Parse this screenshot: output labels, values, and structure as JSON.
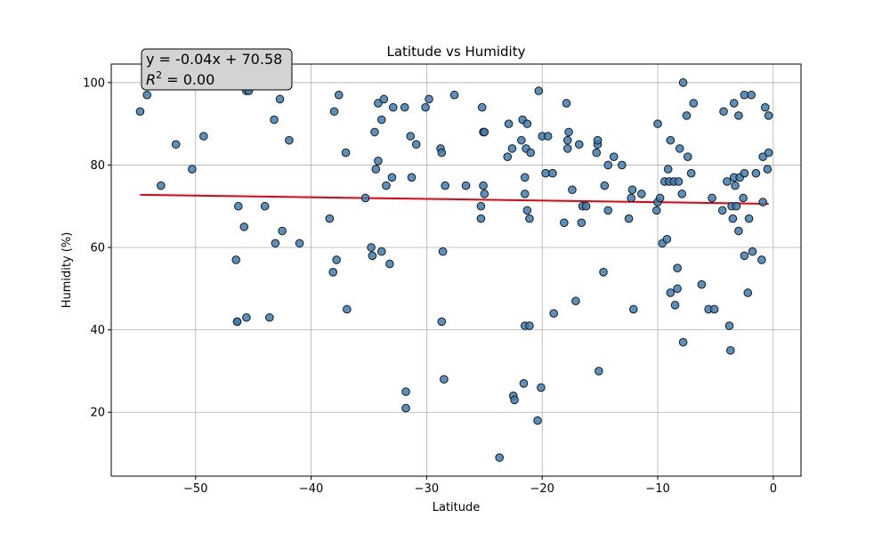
{
  "chart_data": {
    "type": "scatter",
    "title": "Latitude vs Humidity",
    "xlabel": "Latitude",
    "ylabel": "Humidity (%)",
    "xlim": [
      -57.3,
      2.4
    ],
    "ylim": [
      4.5,
      104.5
    ],
    "xticks": [
      -50,
      -40,
      -30,
      -20,
      -10,
      0
    ],
    "yticks": [
      20,
      40,
      60,
      80,
      100
    ],
    "grid": true,
    "point_color": "#3b7cb4",
    "point_edge_color": "#1a1a1a",
    "line_color": "#e8000b",
    "annotation": {
      "equation": "y = -0.04x + 70.58",
      "r2_label": "R",
      "r2_sup": "2",
      "r2_value": " = 0.00"
    },
    "regression": {
      "slope": -0.04,
      "intercept": 70.58,
      "x_range": [
        -54.8,
        -0.4
      ]
    },
    "points": [
      [
        -54.8,
        93
      ],
      [
        -54.2,
        97
      ],
      [
        -53.0,
        75
      ],
      [
        -51.7,
        85
      ],
      [
        -50.3,
        79
      ],
      [
        -49.3,
        87
      ],
      [
        -46.5,
        57
      ],
      [
        -46.4,
        42
      ],
      [
        -46.3,
        70
      ],
      [
        -46.4,
        42
      ],
      [
        -45.8,
        65
      ],
      [
        -45.6,
        43
      ],
      [
        -45.6,
        98
      ],
      [
        -45.4,
        98
      ],
      [
        -44.0,
        70
      ],
      [
        -43.6,
        43
      ],
      [
        -43.1,
        61
      ],
      [
        -43.2,
        91
      ],
      [
        -42.7,
        96
      ],
      [
        -42.5,
        64
      ],
      [
        -41.9,
        86
      ],
      [
        -41.0,
        61
      ],
      [
        -38.4,
        67
      ],
      [
        -38.1,
        54
      ],
      [
        -38.0,
        93
      ],
      [
        -37.8,
        57
      ],
      [
        -37.6,
        97
      ],
      [
        -37.0,
        83
      ],
      [
        -36.9,
        45
      ],
      [
        -35.3,
        72
      ],
      [
        -34.8,
        60
      ],
      [
        -34.7,
        58
      ],
      [
        -34.5,
        88
      ],
      [
        -34.4,
        79
      ],
      [
        -34.2,
        81
      ],
      [
        -34.2,
        95
      ],
      [
        -33.9,
        91
      ],
      [
        -33.9,
        59
      ],
      [
        -33.7,
        96
      ],
      [
        -33.5,
        75
      ],
      [
        -33.2,
        56
      ],
      [
        -33.0,
        77
      ],
      [
        -32.9,
        94
      ],
      [
        -31.9,
        94
      ],
      [
        -31.8,
        25
      ],
      [
        -31.8,
        21
      ],
      [
        -31.4,
        87
      ],
      [
        -31.3,
        77
      ],
      [
        -30.9,
        85
      ],
      [
        -30.1,
        94
      ],
      [
        -29.8,
        96
      ],
      [
        -28.8,
        84
      ],
      [
        -28.7,
        83
      ],
      [
        -28.7,
        42
      ],
      [
        -28.6,
        59
      ],
      [
        -28.5,
        28
      ],
      [
        -28.4,
        75
      ],
      [
        -27.6,
        97
      ],
      [
        -26.6,
        75
      ],
      [
        -25.3,
        67
      ],
      [
        -25.3,
        70
      ],
      [
        -25.2,
        94
      ],
      [
        -25.1,
        75
      ],
      [
        -25.1,
        88
      ],
      [
        -25.0,
        88
      ],
      [
        -25.0,
        73
      ],
      [
        -23.7,
        9
      ],
      [
        -23.0,
        82
      ],
      [
        -22.9,
        90
      ],
      [
        -22.6,
        84
      ],
      [
        -22.5,
        24
      ],
      [
        -22.4,
        23
      ],
      [
        -21.8,
        86
      ],
      [
        -21.7,
        91
      ],
      [
        -21.6,
        27
      ],
      [
        -21.5,
        77
      ],
      [
        -21.5,
        73
      ],
      [
        -21.5,
        41
      ],
      [
        -21.4,
        84
      ],
      [
        -21.3,
        69
      ],
      [
        -21.3,
        90
      ],
      [
        -21.1,
        41
      ],
      [
        -21.1,
        67
      ],
      [
        -21.0,
        83
      ],
      [
        -20.4,
        18
      ],
      [
        -20.3,
        98
      ],
      [
        -20.1,
        26
      ],
      [
        -20.0,
        87
      ],
      [
        -19.7,
        78
      ],
      [
        -19.5,
        87
      ],
      [
        -19.1,
        78
      ],
      [
        -19.0,
        44
      ],
      [
        -18.1,
        66
      ],
      [
        -17.9,
        95
      ],
      [
        -17.8,
        86
      ],
      [
        -17.8,
        84
      ],
      [
        -17.7,
        88
      ],
      [
        -17.4,
        74
      ],
      [
        -17.1,
        47
      ],
      [
        -16.8,
        85
      ],
      [
        -16.6,
        66
      ],
      [
        -16.5,
        70
      ],
      [
        -16.2,
        70
      ],
      [
        -15.3,
        83
      ],
      [
        -15.2,
        85
      ],
      [
        -15.2,
        86
      ],
      [
        -15.1,
        30
      ],
      [
        -14.7,
        54
      ],
      [
        -14.6,
        75
      ],
      [
        -14.3,
        80
      ],
      [
        -14.3,
        69
      ],
      [
        -13.8,
        82
      ],
      [
        -13.1,
        80
      ],
      [
        -12.5,
        67
      ],
      [
        -12.3,
        72
      ],
      [
        -12.2,
        74
      ],
      [
        -12.1,
        45
      ],
      [
        -11.4,
        73
      ],
      [
        -10.1,
        69
      ],
      [
        -10.0,
        71
      ],
      [
        -10.0,
        90
      ],
      [
        -9.8,
        72
      ],
      [
        -9.6,
        61
      ],
      [
        -9.4,
        76
      ],
      [
        -9.2,
        62
      ],
      [
        -9.1,
        79
      ],
      [
        -9.0,
        76
      ],
      [
        -8.9,
        86
      ],
      [
        -8.9,
        49
      ],
      [
        -8.6,
        76
      ],
      [
        -8.5,
        46
      ],
      [
        -8.3,
        50
      ],
      [
        -8.3,
        55
      ],
      [
        -8.2,
        76
      ],
      [
        -8.1,
        84
      ],
      [
        -7.9,
        73
      ],
      [
        -7.8,
        100
      ],
      [
        -7.8,
        37
      ],
      [
        -7.5,
        92
      ],
      [
        -7.4,
        82
      ],
      [
        -7.1,
        78
      ],
      [
        -6.9,
        95
      ],
      [
        -6.2,
        51
      ],
      [
        -5.6,
        45
      ],
      [
        -5.3,
        72
      ],
      [
        -5.1,
        45
      ],
      [
        -4.4,
        69
      ],
      [
        -4.3,
        93
      ],
      [
        -4.0,
        76
      ],
      [
        -3.8,
        41
      ],
      [
        -3.7,
        35
      ],
      [
        -3.6,
        70
      ],
      [
        -3.5,
        67
      ],
      [
        -3.4,
        77
      ],
      [
        -3.4,
        95
      ],
      [
        -3.3,
        75
      ],
      [
        -3.2,
        70
      ],
      [
        -3.0,
        64
      ],
      [
        -3.0,
        92
      ],
      [
        -2.9,
        77
      ],
      [
        -2.6,
        72
      ],
      [
        -2.5,
        78
      ],
      [
        -2.5,
        58
      ],
      [
        -2.5,
        97
      ],
      [
        -2.2,
        49
      ],
      [
        -2.1,
        67
      ],
      [
        -1.9,
        97
      ],
      [
        -1.8,
        59
      ],
      [
        -1.5,
        78
      ],
      [
        -1.0,
        57
      ],
      [
        -0.9,
        71
      ],
      [
        -0.9,
        82
      ],
      [
        -0.7,
        94
      ],
      [
        -0.5,
        79
      ],
      [
        -0.4,
        92
      ],
      [
        -0.4,
        83
      ]
    ]
  }
}
